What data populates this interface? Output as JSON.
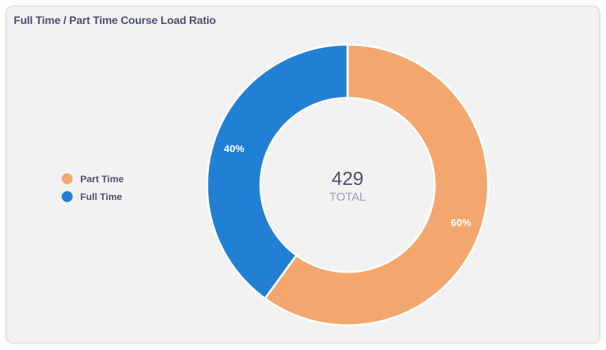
{
  "card": {
    "title": "Full Time / Part Time Course Load Ratio"
  },
  "chart_data": {
    "type": "pie",
    "variant": "donut",
    "title": "Full Time / Part Time Course Load Ratio",
    "categories": [
      "Part Time",
      "Full Time"
    ],
    "values": [
      60,
      40
    ],
    "labels": [
      "60%",
      "40%"
    ],
    "colors": [
      "#f3a76e",
      "#2180d4"
    ],
    "center_value": "429",
    "center_label": "TOTAL",
    "legend_position": "left"
  }
}
